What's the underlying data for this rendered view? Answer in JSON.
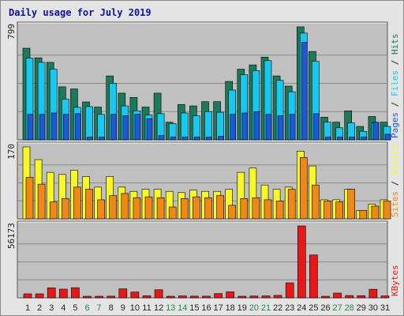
{
  "title": "Daily usage for July 2019",
  "colors": {
    "hits": "#1b7a5a",
    "files": "#18c8f0",
    "pages": "#1a5ad8",
    "visits": "#f8f828",
    "sites": "#f08818",
    "kbytes": "#e81818",
    "weekend_day": "#1a8a4a",
    "weekday_day": "#222222",
    "plot_bg": "#c0c0c0"
  },
  "chart_data": [
    {
      "type": "bar",
      "name": "hits-files-pages",
      "max_label": "799",
      "ylim": [
        0,
        799
      ],
      "grid": true,
      "legend": {
        "items": [
          "Pages",
          "Files",
          "Hits"
        ],
        "separator": "/",
        "placement": "right"
      },
      "categories": [
        "1",
        "2",
        "3",
        "4",
        "5",
        "6",
        "7",
        "8",
        "9",
        "10",
        "11",
        "12",
        "13",
        "14",
        "15",
        "16",
        "17",
        "18",
        "19",
        "20",
        "21",
        "22",
        "23",
        "24",
        "25",
        "26",
        "27",
        "28",
        "29",
        "30",
        "31"
      ],
      "series": [
        {
          "name": "Hits",
          "values": [
            648,
            580,
            548,
            375,
            360,
            268,
            232,
            452,
            330,
            300,
            232,
            330,
            125,
            250,
            240,
            270,
            270,
            413,
            500,
            530,
            585,
            452,
            380,
            799,
            625,
            160,
            125,
            205,
            95,
            165,
            125
          ]
        },
        {
          "name": "Files",
          "values": [
            578,
            548,
            500,
            288,
            230,
            235,
            180,
            400,
            240,
            205,
            175,
            185,
            115,
            190,
            170,
            200,
            195,
            352,
            460,
            490,
            560,
            420,
            340,
            755,
            555,
            125,
            85,
            120,
            60,
            120,
            95
          ]
        },
        {
          "name": "Pages",
          "values": [
            180,
            180,
            190,
            180,
            185,
            20,
            20,
            180,
            170,
            180,
            150,
            30,
            20,
            20,
            20,
            20,
            25,
            180,
            190,
            200,
            180,
            170,
            180,
            690,
            185,
            20,
            20,
            20,
            20,
            125,
            40
          ]
        }
      ]
    },
    {
      "type": "bar",
      "name": "visits-sites",
      "max_label": "170",
      "ylim": [
        0,
        170
      ],
      "grid": true,
      "legend": {
        "items": [
          "Sites",
          "Visits"
        ],
        "separator": "/",
        "placement": "right"
      },
      "categories": [
        "1",
        "2",
        "3",
        "4",
        "5",
        "6",
        "7",
        "8",
        "9",
        "10",
        "11",
        "12",
        "13",
        "14",
        "15",
        "16",
        "17",
        "18",
        "19",
        "20",
        "21",
        "22",
        "23",
        "24",
        "25",
        "26",
        "27",
        "28",
        "29",
        "30",
        "31"
      ],
      "series": [
        {
          "name": "Visits",
          "values": [
            170,
            140,
            110,
            105,
            115,
            100,
            75,
            100,
            75,
            65,
            70,
            70,
            65,
            62,
            68,
            65,
            65,
            70,
            110,
            120,
            80,
            70,
            75,
            160,
            125,
            45,
            45,
            70,
            20,
            35,
            45
          ]
        },
        {
          "name": "Sites",
          "values": [
            98,
            82,
            40,
            48,
            75,
            70,
            45,
            55,
            60,
            50,
            52,
            50,
            28,
            48,
            52,
            50,
            55,
            32,
            48,
            50,
            45,
            42,
            70,
            145,
            80,
            42,
            40,
            70,
            20,
            30,
            42
          ]
        }
      ]
    },
    {
      "type": "bar",
      "name": "kbytes",
      "max_label": "56173",
      "ylim": [
        0,
        56173
      ],
      "grid": true,
      "legend": {
        "items": [
          "KBytes"
        ],
        "separator": "/",
        "placement": "right"
      },
      "categories": [
        "1",
        "2",
        "3",
        "4",
        "5",
        "6",
        "7",
        "8",
        "9",
        "10",
        "11",
        "12",
        "13",
        "14",
        "15",
        "16",
        "17",
        "18",
        "19",
        "20",
        "21",
        "22",
        "23",
        "24",
        "25",
        "26",
        "27",
        "28",
        "29",
        "30",
        "31"
      ],
      "series": [
        {
          "name": "KBytes",
          "values": [
            3100,
            3100,
            7800,
            6800,
            7900,
            400,
            1200,
            1300,
            7000,
            4500,
            1600,
            6300,
            700,
            1500,
            1300,
            1300,
            3300,
            4700,
            1000,
            1400,
            1500,
            1900,
            11700,
            56173,
            33500,
            1100,
            3700,
            1800,
            1700,
            6700,
            1500
          ]
        }
      ]
    }
  ],
  "weekend_days": [
    "6",
    "7",
    "13",
    "14",
    "20",
    "21",
    "27",
    "28"
  ]
}
